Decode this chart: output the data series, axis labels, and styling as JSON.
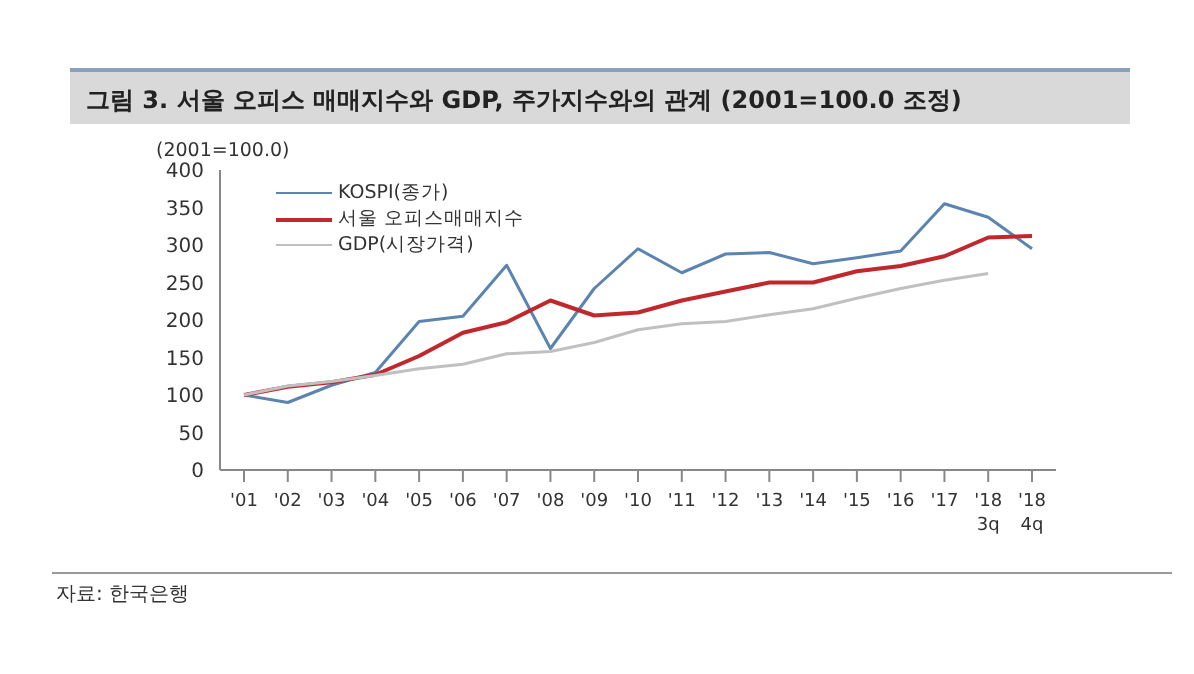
{
  "chart_data": {
    "type": "line",
    "title": "그림 3. 서울 오피스 매매지수와 GDP, 주가지수와의 관계 (2001=100.0 조정)",
    "ylabel": "(2001=100.0)",
    "categories": [
      "'01",
      "'02",
      "'03",
      "'04",
      "'05",
      "'06",
      "'07",
      "'08",
      "'09",
      "'10",
      "'11",
      "'12",
      "'13",
      "'14",
      "'15",
      "'16",
      "'17",
      "'18 3q",
      "'18 4q"
    ],
    "series": [
      {
        "name": "KOSPI(종가)",
        "color": "#5b84b1",
        "values": [
          100,
          90,
          113,
          130,
          198,
          205,
          273,
          162,
          242,
          295,
          263,
          288,
          290,
          275,
          283,
          292,
          355,
          337,
          295
        ]
      },
      {
        "name": "서울 오피스매매지수",
        "color": "#c0282d",
        "values": [
          100,
          111,
          117,
          127,
          152,
          183,
          197,
          226,
          206,
          210,
          226,
          238,
          250,
          250,
          265,
          272,
          285,
          310,
          312
        ]
      },
      {
        "name": "GDP(시장가격)",
        "color": "#c0c0c0",
        "values": [
          100,
          112,
          118,
          126,
          135,
          141,
          155,
          158,
          170,
          187,
          195,
          198,
          207,
          215,
          229,
          242,
          253,
          262,
          null
        ]
      }
    ],
    "ylim": [
      0,
      400
    ],
    "yticks": [
      0,
      50,
      100,
      150,
      200,
      250,
      300,
      350,
      400
    ],
    "grid": false,
    "legend": "top left",
    "marker": "none",
    "line_style": "solid",
    "annotations": [
      "자료: 한국은행"
    ]
  }
}
